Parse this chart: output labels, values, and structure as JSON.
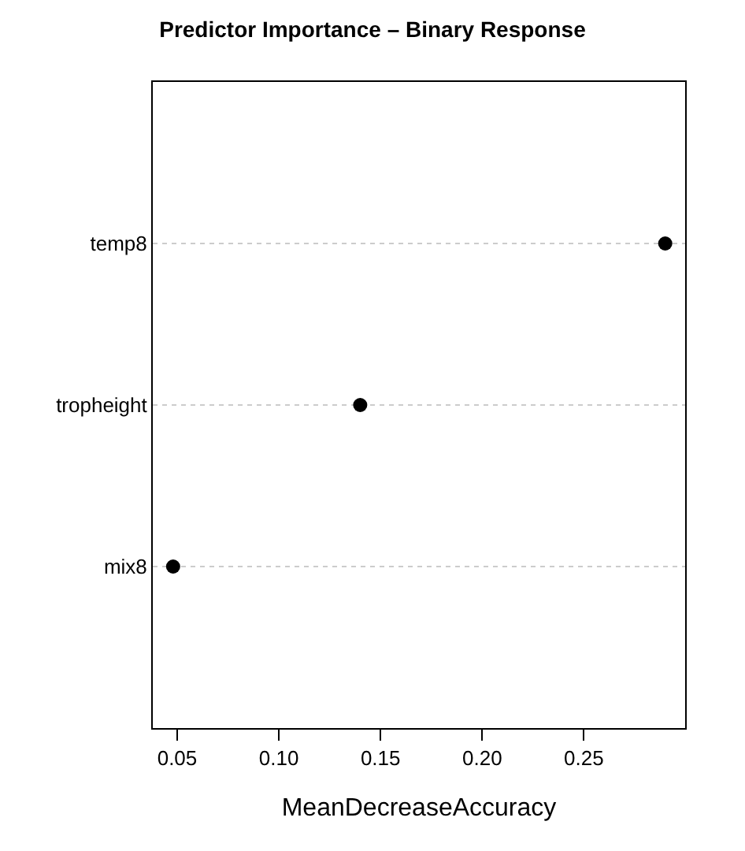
{
  "chart_data": {
    "type": "scatter",
    "title": "Predictor Importance – Binary Response",
    "xlabel": "MeanDecreaseAccuracy",
    "categories": [
      "temp8",
      "tropheight",
      "mix8"
    ],
    "series": [
      {
        "color": "#000000",
        "values": [
          0.29,
          0.14,
          0.048
        ]
      }
    ],
    "orientation": "horizontal",
    "xlim": [
      0.038,
      0.2998
    ],
    "xticks": [
      {
        "value": 0.05,
        "label": "0.05"
      },
      {
        "value": 0.1,
        "label": "0.10"
      },
      {
        "value": 0.15,
        "label": "0.15"
      },
      {
        "value": 0.2,
        "label": "0.20"
      },
      {
        "value": 0.25,
        "label": "0.25"
      }
    ],
    "grid": "y",
    "marker": "circle"
  }
}
